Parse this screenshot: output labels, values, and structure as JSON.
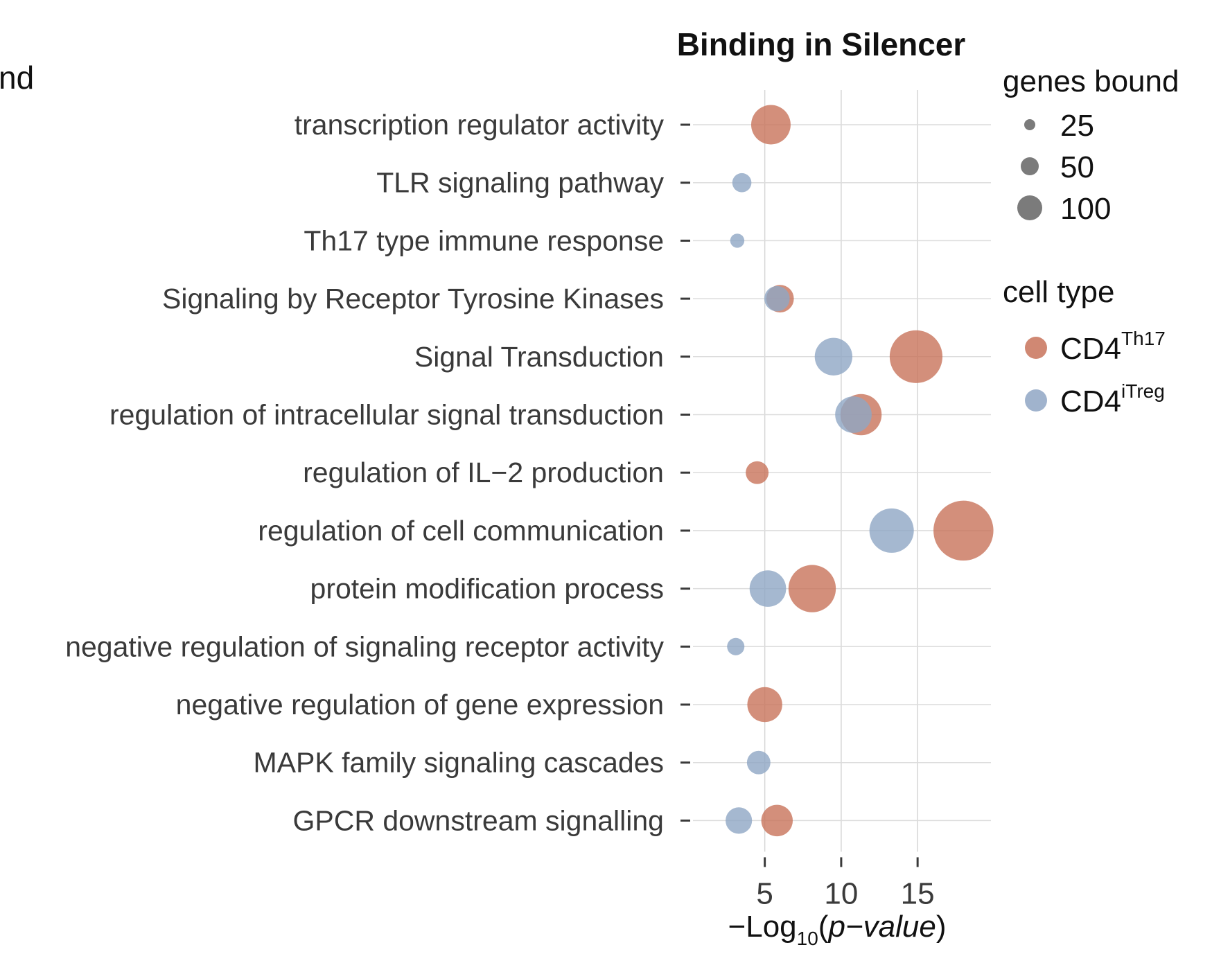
{
  "cut_off_legend_text": "nd",
  "chart_data": {
    "type": "scatter",
    "title": "Binding in Silencer",
    "xlabel": {
      "prefix": "−Log",
      "subscript": "10",
      "suffix": "(",
      "italic": "p−value",
      "close": ")"
    },
    "ylabel": "",
    "xlim": [
      0.3,
      19.8
    ],
    "xticks": [
      "5",
      "10",
      "15"
    ],
    "xtick_values": [
      5,
      10,
      15
    ],
    "grid": true,
    "legend_placement": "right",
    "categories": [
      "transcription regulator activity",
      "TLR signaling pathway",
      "Th17 type immune response",
      "Signaling by Receptor Tyrosine Kinases",
      "Signal Transduction",
      "regulation of intracellular signal transduction",
      "regulation of IL−2 production",
      "regulation of cell communication",
      "protein modification process",
      "negative regulation of signaling receptor activity",
      "negative regulation of gene expression",
      "MAPK family signaling cascades",
      "GPCR downstream signalling"
    ],
    "series": [
      {
        "name": "CD4 Th17",
        "color": "#c8735a",
        "points": [
          {
            "category": "transcription regulator activity",
            "x": 5.4,
            "genes": 50
          },
          {
            "category": "Signaling by Receptor Tyrosine Kinases",
            "x": 6.0,
            "genes": 22
          },
          {
            "category": "Signal Transduction",
            "x": 14.9,
            "genes": 95
          },
          {
            "category": "regulation of intracellular signal transduction",
            "x": 11.3,
            "genes": 55
          },
          {
            "category": "regulation of IL−2 production",
            "x": 4.5,
            "genes": 14
          },
          {
            "category": "regulation of cell communication",
            "x": 18.0,
            "genes": 125
          },
          {
            "category": "protein modification process",
            "x": 8.1,
            "genes": 75
          },
          {
            "category": "negative regulation of gene expression",
            "x": 5.0,
            "genes": 38
          },
          {
            "category": "GPCR downstream signalling",
            "x": 5.8,
            "genes": 30
          }
        ]
      },
      {
        "name": "CD4 iTreg",
        "color": "#8fa6c4",
        "points": [
          {
            "category": "TLR signaling pathway",
            "x": 3.5,
            "genes": 9
          },
          {
            "category": "Th17 type immune response",
            "x": 3.2,
            "genes": 4
          },
          {
            "category": "Signaling by Receptor Tyrosine Kinases",
            "x": 5.8,
            "genes": 18
          },
          {
            "category": "Signal Transduction",
            "x": 9.5,
            "genes": 45
          },
          {
            "category": "regulation of intracellular signal transduction",
            "x": 10.8,
            "genes": 42
          },
          {
            "category": "regulation of cell communication",
            "x": 13.3,
            "genes": 65
          },
          {
            "category": "protein modification process",
            "x": 5.2,
            "genes": 42
          },
          {
            "category": "negative regulation of signaling receptor activity",
            "x": 3.1,
            "genes": 7
          },
          {
            "category": "MAPK family signaling cascades",
            "x": 4.6,
            "genes": 15
          },
          {
            "category": "GPCR downstream signalling",
            "x": 3.3,
            "genes": 20
          }
        ]
      }
    ],
    "legend_size": {
      "title": "genes bound",
      "items": [
        {
          "label": "25",
          "value": 25
        },
        {
          "label": "50",
          "value": 50
        },
        {
          "label": "100",
          "value": 100
        }
      ]
    },
    "legend_color": {
      "title": "cell type",
      "items": [
        {
          "base": "CD4",
          "sup": "Th17",
          "color": "#c8735a"
        },
        {
          "base": "CD4",
          "sup": "iTreg",
          "color": "#8fa6c4"
        }
      ]
    }
  }
}
